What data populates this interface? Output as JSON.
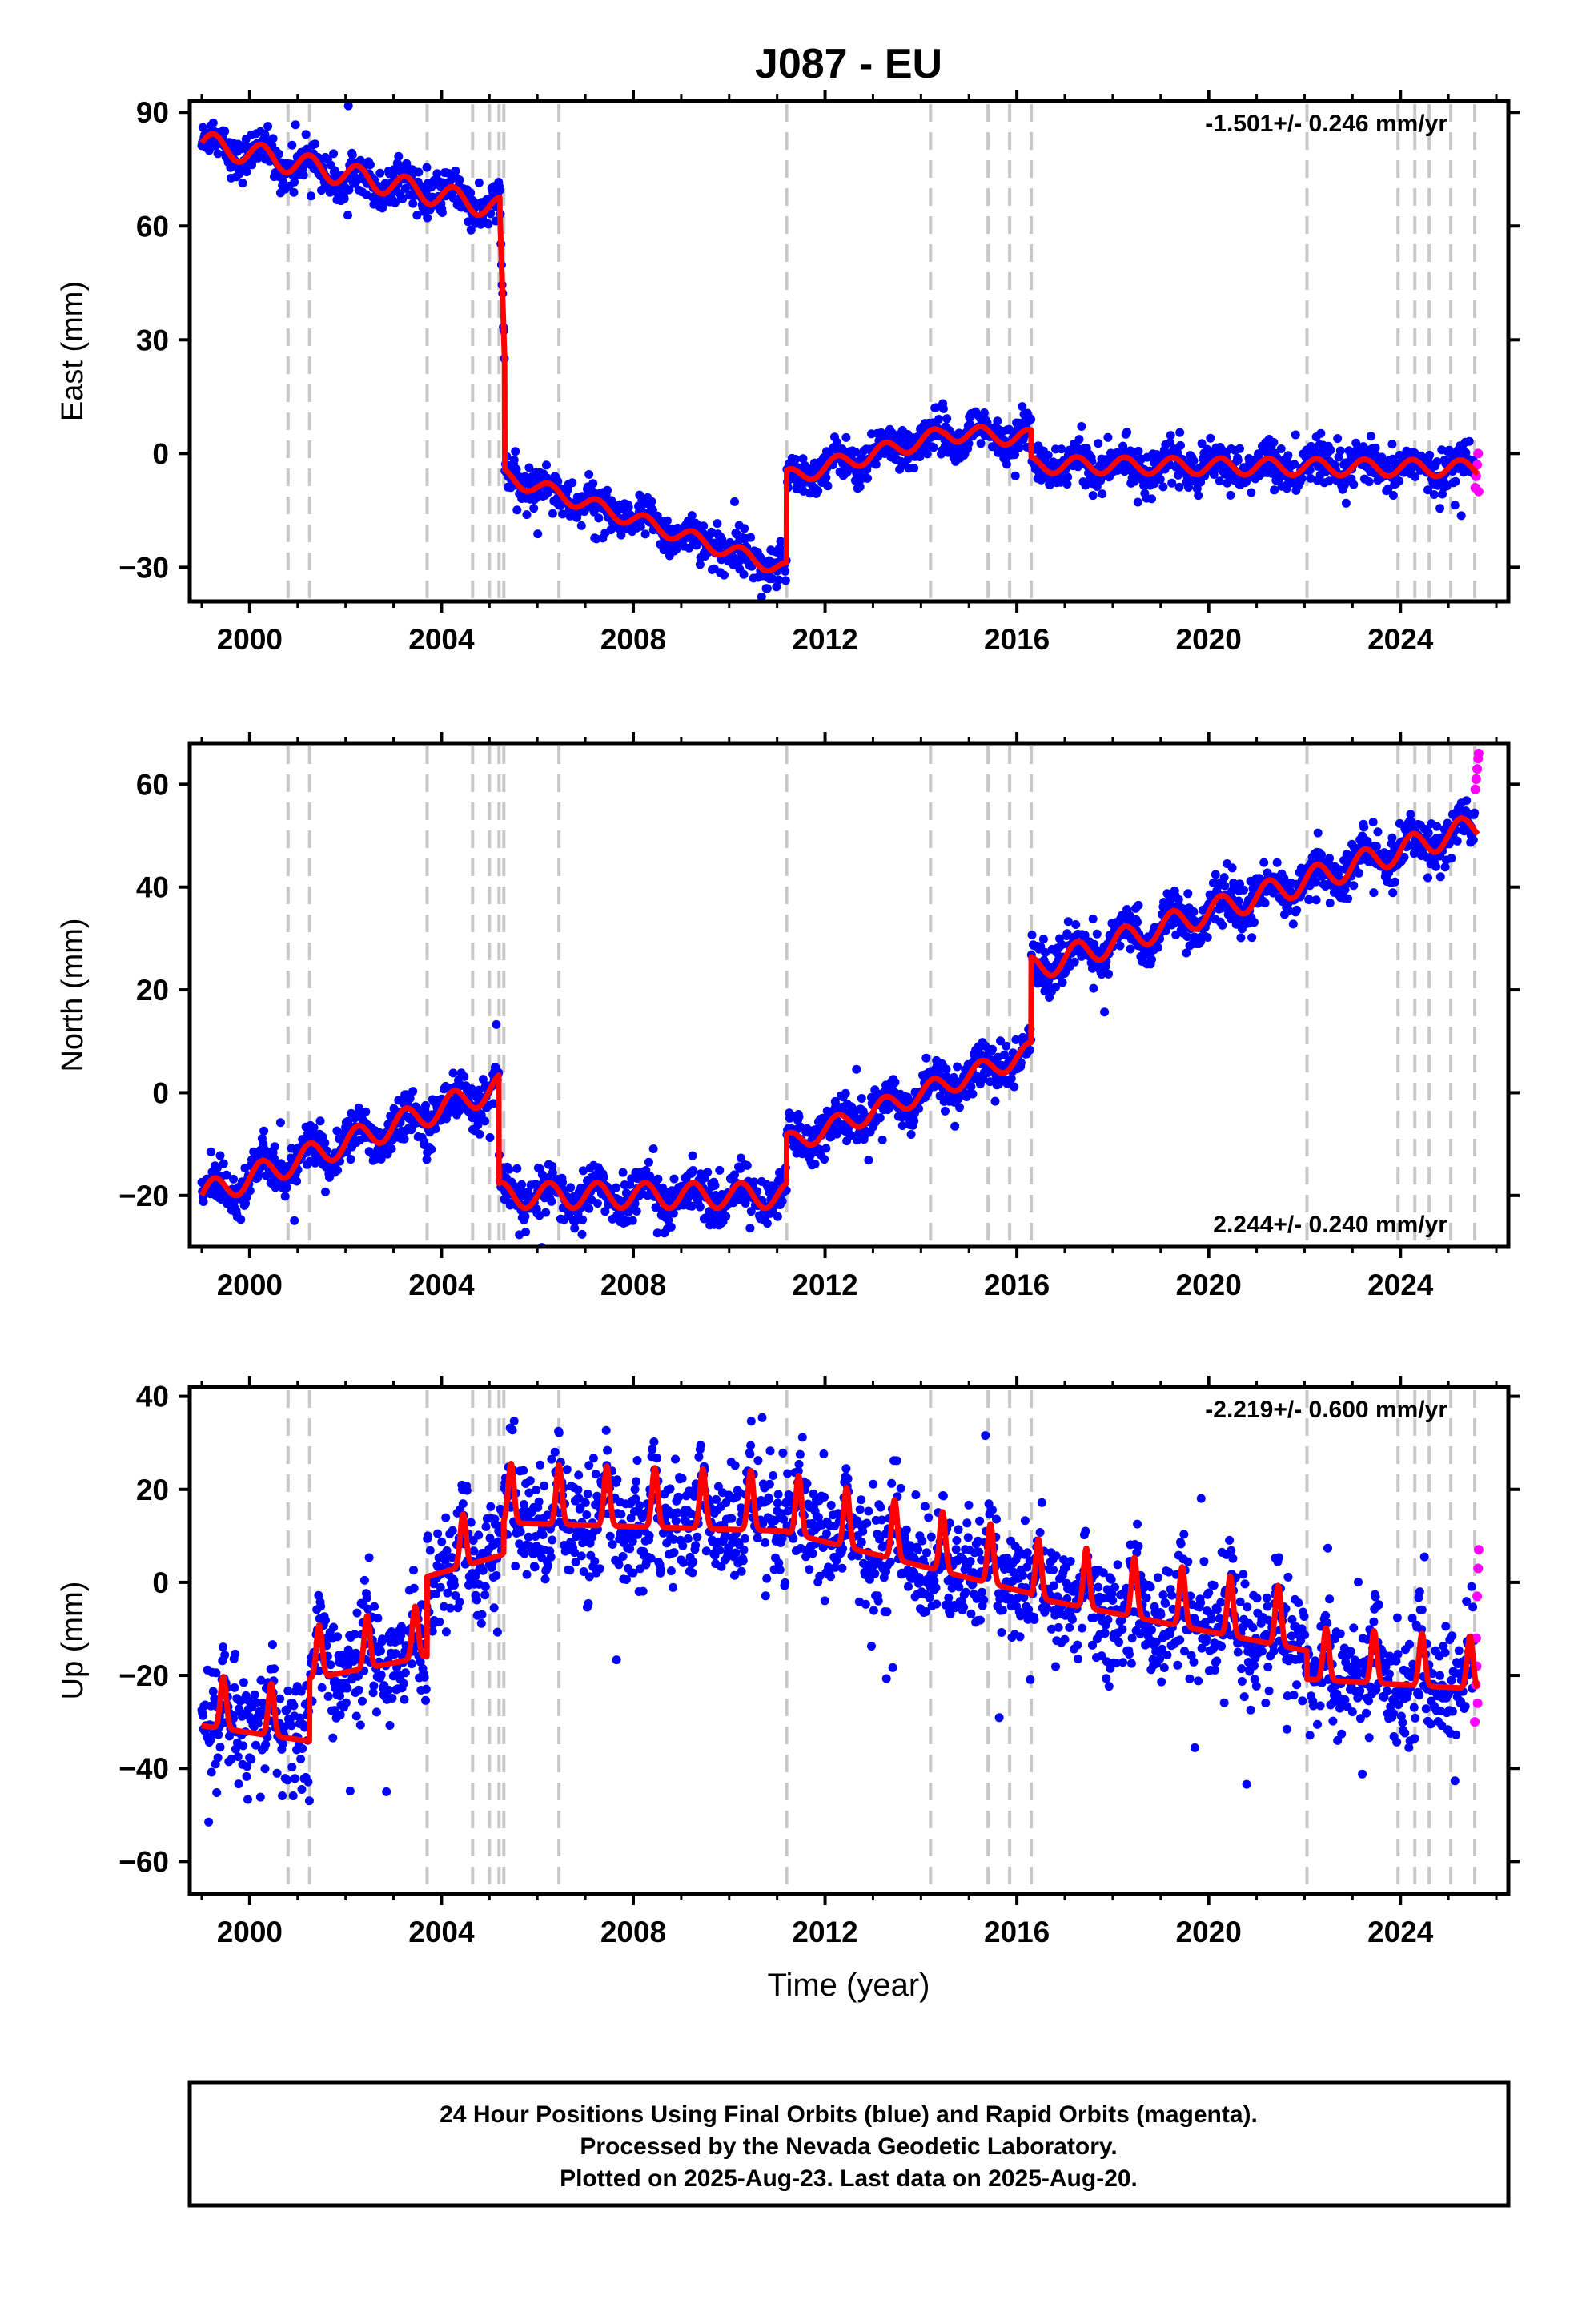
{
  "title": "J087 - EU",
  "footer": {
    "lines": [
      "24 Hour Positions Using Final Orbits (blue) and Rapid Orbits (magenta).",
      "Processed by the Nevada Geodetic Laboratory.",
      "Plotted on 2025-Aug-23. Last data on 2025-Aug-20."
    ]
  },
  "xaxis": {
    "label": "Time (year)",
    "range": [
      1998.75,
      2026.25
    ],
    "ticks": [
      2000,
      2004,
      2008,
      2012,
      2016,
      2020,
      2024
    ],
    "tick_labels": [
      "2000",
      "2004",
      "2008",
      "2012",
      "2016",
      "2020",
      "2024"
    ]
  },
  "colors": {
    "final_orbits": "#0000ff",
    "rapid_orbits": "#ff00ff",
    "model": "#ff0000",
    "event_lines": "#c8c8c8",
    "frame": "#000000"
  },
  "event_lines": [
    2000.8,
    2001.25,
    2003.7,
    2004.65,
    2005.0,
    2005.2,
    2005.3,
    2006.45,
    2011.2,
    2014.2,
    2015.4,
    2015.85,
    2016.3,
    2022.05,
    2023.95,
    2024.3,
    2024.6,
    2025.05,
    2025.55
  ],
  "chart_data": [
    {
      "type": "scatter",
      "panel": "east",
      "ylabel": "East (mm)",
      "ylim": [
        -39,
        93
      ],
      "yticks": [
        -30,
        0,
        30,
        60,
        90
      ],
      "ytick_labels": [
        "−30",
        "0",
        "30",
        "60",
        "90"
      ],
      "rate_text": "-1.501+/- 0.246 mm/yr",
      "rate_position": "top-right",
      "velocity": -1.501,
      "model": {
        "segments": [
          {
            "x": [
              1999.0,
              2005.22
            ],
            "start": 82.0,
            "slope": -2.8,
            "amp": 3.0
          },
          {
            "x": [
              2005.22,
              2005.32
            ],
            "start": 63.0,
            "slope": -400.0,
            "amp": 0.0
          },
          {
            "x": [
              2005.32,
              2011.2
            ],
            "start": -6.0,
            "slope": -4.2,
            "amp": 2.0
          },
          {
            "x": [
              2011.2,
              2014.5
            ],
            "start": -6.5,
            "slope": 3.5,
            "amp": 2.2
          },
          {
            "x": [
              2014.5,
              2016.3
            ],
            "start": 5.5,
            "slope": -0.8,
            "amp": 2.2
          },
          {
            "x": [
              2016.3,
              2025.62
            ],
            "start": -3.0,
            "slope": -0.1,
            "amp": 2.2
          }
        ],
        "anchors": [
          {
            "x": 1999.0,
            "y": 82
          },
          {
            "x": 2001.0,
            "y": 75
          },
          {
            "x": 2003.0,
            "y": 71
          },
          {
            "x": 2005.2,
            "y": 64
          },
          {
            "x": 2005.3,
            "y": 2
          },
          {
            "x": 2005.5,
            "y": -6
          },
          {
            "x": 2008.0,
            "y": -20
          },
          {
            "x": 2011.2,
            "y": -30
          },
          {
            "x": 2011.22,
            "y": -6
          },
          {
            "x": 2014.5,
            "y": 5
          },
          {
            "x": 2016.3,
            "y": 2
          },
          {
            "x": 2020.0,
            "y": -2
          },
          {
            "x": 2025.6,
            "y": -6
          }
        ]
      },
      "scatter_sd": 2.6,
      "rapid_points": [
        {
          "x": 2025.56,
          "y": -9
        },
        {
          "x": 2025.58,
          "y": -6
        },
        {
          "x": 2025.6,
          "y": -3
        },
        {
          "x": 2025.62,
          "y": 0
        },
        {
          "x": 2025.63,
          "y": -10
        }
      ]
    },
    {
      "type": "scatter",
      "panel": "north",
      "ylabel": "North (mm)",
      "ylim": [
        -30,
        68
      ],
      "yticks": [
        -20,
        0,
        20,
        40,
        60
      ],
      "ytick_labels": [
        "−20",
        "0",
        "20",
        "40",
        "60"
      ],
      "rate_text": "2.244+/- 0.240 mm/yr",
      "rate_position": "bottom-right",
      "velocity": 2.244,
      "model": {
        "segments": [
          {
            "x": [
              1999.0,
              2005.2
            ],
            "start": -20.0,
            "slope": 3.4,
            "amp": 2.5
          },
          {
            "x": [
              2005.2,
              2011.2
            ],
            "start": -20.0,
            "slope": 0.0,
            "amp": 2.5
          },
          {
            "x": [
              2011.2,
              2016.3
            ],
            "start": -10.0,
            "slope": 3.5,
            "amp": 2.0
          },
          {
            "x": [
              2016.3,
              2025.62
            ],
            "start": 24.0,
            "slope": 3.0,
            "amp": 2.5
          }
        ]
      },
      "scatter_sd": 2.2,
      "rapid_points": [
        {
          "x": 2025.56,
          "y": 59
        },
        {
          "x": 2025.58,
          "y": 61
        },
        {
          "x": 2025.6,
          "y": 63
        },
        {
          "x": 2025.62,
          "y": 65
        },
        {
          "x": 2025.63,
          "y": 66
        }
      ]
    },
    {
      "type": "scatter",
      "panel": "up",
      "ylabel": "Up (mm)",
      "ylim": [
        -67,
        42
      ],
      "yticks": [
        -60,
        -40,
        -20,
        0,
        20,
        40
      ],
      "ytick_labels": [
        "−60",
        "−40",
        "−20",
        "0",
        "20",
        "40"
      ],
      "rate_text": "-2.219+/- 0.600 mm/yr",
      "rate_position": "top-right",
      "velocity": -2.219,
      "model": {
        "segments": [
          {
            "x": [
              1999.0,
              2001.25
            ],
            "start": -28.0,
            "slope": -1.5,
            "amp": 7.0
          },
          {
            "x": [
              2001.25,
              2003.7
            ],
            "start": -18.0,
            "slope": 2.0,
            "amp": 7.0
          },
          {
            "x": [
              2003.7,
              2005.3
            ],
            "start": 4.0,
            "slope": 3.0,
            "amp": 7.0
          },
          {
            "x": [
              2005.3,
              2011.2
            ],
            "start": 16.0,
            "slope": -0.3,
            "amp": 8.0
          },
          {
            "x": [
              2011.2,
              2016.3
            ],
            "start": 14.0,
            "slope": -2.6,
            "amp": 8.0
          },
          {
            "x": [
              2016.3,
              2022.05
            ],
            "start": 0.0,
            "slope": -2.0,
            "amp": 8.0
          },
          {
            "x": [
              2022.05,
              2025.62
            ],
            "start": -18.0,
            "slope": -0.6,
            "amp": 7.0
          }
        ]
      },
      "scatter_sd": 6.0,
      "rapid_points": [
        {
          "x": 2025.55,
          "y": -30
        },
        {
          "x": 2025.57,
          "y": -22
        },
        {
          "x": 2025.58,
          "y": -12
        },
        {
          "x": 2025.6,
          "y": -3
        },
        {
          "x": 2025.62,
          "y": 3
        },
        {
          "x": 2025.63,
          "y": 7
        },
        {
          "x": 2025.61,
          "y": -26
        },
        {
          "x": 2025.59,
          "y": -18
        }
      ]
    }
  ]
}
